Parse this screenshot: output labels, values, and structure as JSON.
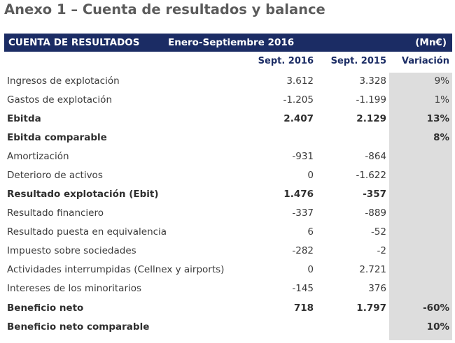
{
  "title": "Anexo 1 – Cuenta de resultados y balance",
  "header": {
    "section": "CUENTA DE RESULTADOS",
    "period": "Enero-Septiembre 2016",
    "units": "(Mn€)"
  },
  "columns": {
    "c2016": "Sept. 2016",
    "c2015": "Sept. 2015",
    "var": "Variación"
  },
  "rows": [
    {
      "label": "Ingresos de explotación",
      "v2016": "3.612",
      "v2015": "3.328",
      "var": "9%"
    },
    {
      "label": "Gastos de explotación",
      "v2016": "-1.205",
      "v2015": "-1.199",
      "var": "1%"
    },
    {
      "label": "Ebitda",
      "v2016": "2.407",
      "v2015": "2.129",
      "var": "13%"
    },
    {
      "label": "Ebitda comparable",
      "v2016": "",
      "v2015": "",
      "var": "8%"
    },
    {
      "label": "Amortización",
      "v2016": "-931",
      "v2015": "-864",
      "var": ""
    },
    {
      "label": "Deterioro de activos",
      "v2016": "0",
      "v2015": "-1.622",
      "var": ""
    },
    {
      "label": "Resultado explotación (Ebit)",
      "v2016": "1.476",
      "v2015": "-357",
      "var": ""
    },
    {
      "label": "Resultado financiero",
      "v2016": "-337",
      "v2015": "-889",
      "var": ""
    },
    {
      "label": "Resultado puesta en equivalencia",
      "v2016": "6",
      "v2015": "-52",
      "var": ""
    },
    {
      "label": "Impuesto sobre sociedades",
      "v2016": "-282",
      "v2015": "-2",
      "var": ""
    },
    {
      "label": "Actividades interrumpidas (Cellnex y airports)",
      "v2016": "0",
      "v2015": "2.721",
      "var": ""
    },
    {
      "label": "Intereses de los minoritarios",
      "v2016": "-145",
      "v2015": "376",
      "var": ""
    },
    {
      "label": "Beneficio neto",
      "v2016": "718",
      "v2015": "1.797",
      "var": "-60%"
    },
    {
      "label": "Beneficio neto comparable",
      "v2016": "",
      "v2015": "",
      "var": "10%"
    }
  ]
}
